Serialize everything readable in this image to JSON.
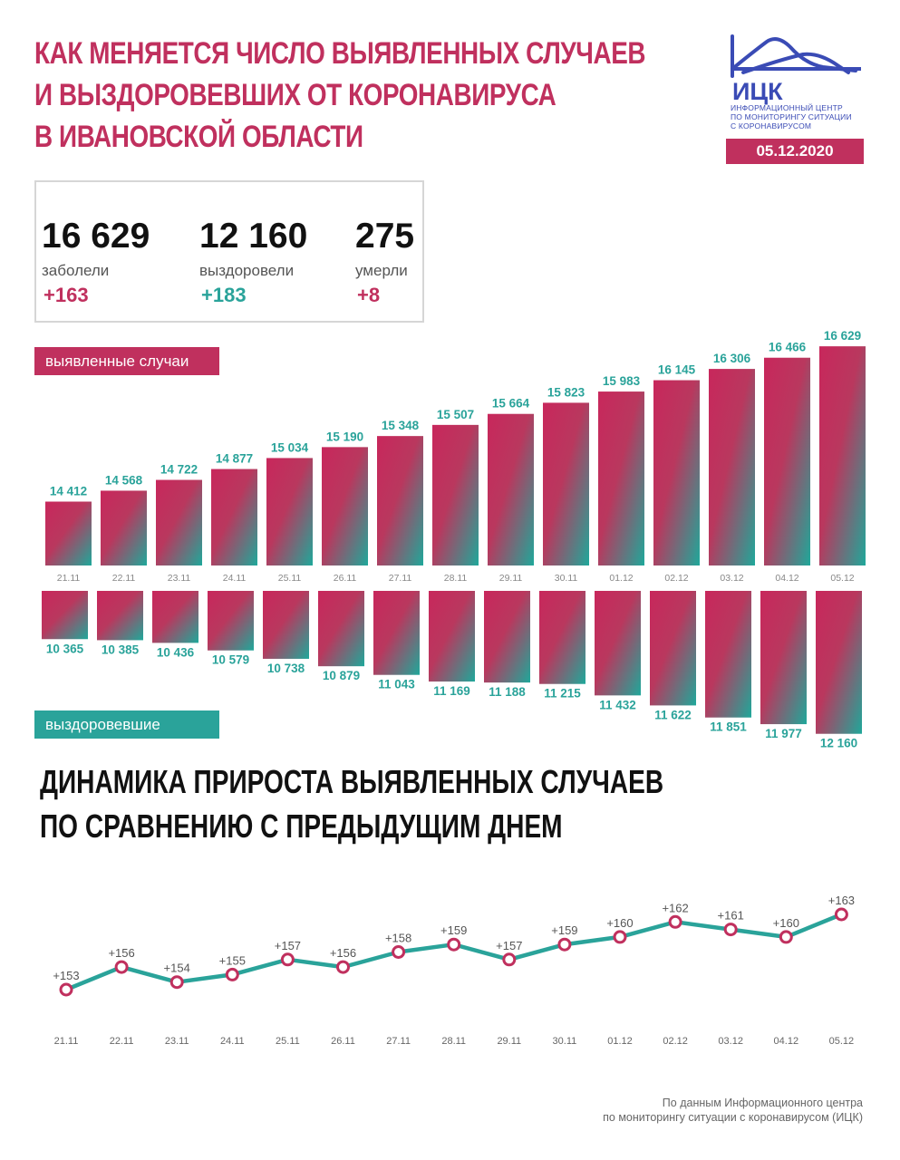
{
  "title": {
    "line1": "Как меняется число выявленных случаев",
    "line2": "и выздоровевших от коронавируса",
    "line3": "в Ивановской области"
  },
  "logo": {
    "name": "ИЦК",
    "subtitle_line1": "Информационный центр",
    "subtitle_line2": "по мониторингу ситуации",
    "subtitle_line3": "с коронавирусом"
  },
  "date": "05.12.2020",
  "stats": {
    "infected": {
      "value": "16 629",
      "label": "заболели",
      "delta": "+163"
    },
    "recovered": {
      "value": "12 160",
      "label": "выздоровели",
      "delta": "+183"
    },
    "died": {
      "value": "275",
      "label": "умерли",
      "delta": "+8"
    }
  },
  "tags": {
    "cases": "выявленные случаи",
    "recovered": "выздоровевшие"
  },
  "section_title": {
    "line1": "Динамика прироста выявленных случаев",
    "line2": "по сравнению с предыдущим днем"
  },
  "footnote": {
    "line1": "По данным Информационного центра",
    "line2": "по мониторингу ситуации с коронавирусом (ИЦК)"
  },
  "colors": {
    "accent": "#c0305e",
    "teal": "#2aa39a",
    "logo_blue": "#3a4bb5"
  },
  "chart_data": [
    {
      "type": "bar",
      "categories": [
        "21.11",
        "22.11",
        "23.11",
        "24.11",
        "25.11",
        "26.11",
        "27.11",
        "28.11",
        "29.11",
        "30.11",
        "01.12",
        "02.12",
        "03.12",
        "04.12",
        "05.12"
      ],
      "series": [
        {
          "name": "выявленные случаи",
          "values": [
            14412,
            14568,
            14722,
            14877,
            15034,
            15190,
            15348,
            15507,
            15664,
            15823,
            15983,
            16145,
            16306,
            16466,
            16629
          ],
          "labels": [
            "14 412",
            "14 568",
            "14 722",
            "14 877",
            "15 034",
            "15 190",
            "15 348",
            "15 507",
            "15 664",
            "15 823",
            "15 983",
            "16 145",
            "16 306",
            "16 466",
            "16 629"
          ]
        },
        {
          "name": "выздоровевшие",
          "values": [
            10365,
            10385,
            10436,
            10579,
            10738,
            10879,
            11043,
            11169,
            11188,
            11215,
            11432,
            11622,
            11851,
            11977,
            12160
          ],
          "labels": [
            "10 365",
            "10 385",
            "10 436",
            "10 579",
            "10 738",
            "10 879",
            "11 043",
            "11 169",
            "11 188",
            "11 215",
            "11 432",
            "11 622",
            "11 851",
            "11 977",
            "12 160"
          ]
        }
      ]
    },
    {
      "type": "line",
      "categories": [
        "21.11",
        "22.11",
        "23.11",
        "24.11",
        "25.11",
        "26.11",
        "27.11",
        "28.11",
        "29.11",
        "30.11",
        "01.12",
        "02.12",
        "03.12",
        "04.12",
        "05.12"
      ],
      "values": [
        153,
        156,
        154,
        155,
        157,
        156,
        158,
        159,
        157,
        159,
        160,
        162,
        161,
        160,
        163
      ],
      "labels": [
        "+153",
        "+156",
        "+154",
        "+155",
        "+157",
        "+156",
        "+158",
        "+159",
        "+157",
        "+159",
        "+160",
        "+162",
        "+161",
        "+160",
        "+163"
      ]
    }
  ]
}
